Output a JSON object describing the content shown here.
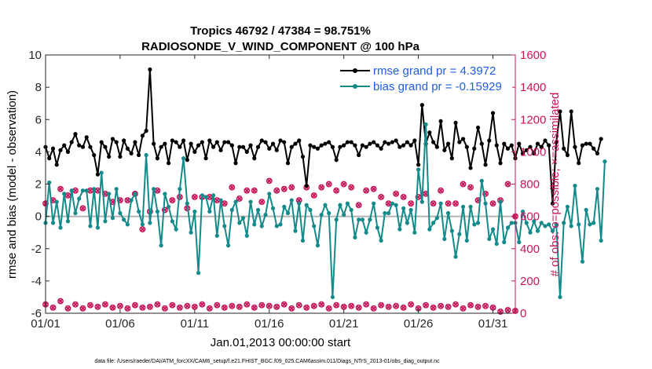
{
  "chart_data": {
    "type": "line",
    "title_line1": "Tropics 46792 / 47384 = 98.751%",
    "title_line2": "RADIOSONDE_V_WIND_COMPONENT @ 100 hPa",
    "xlabel": "Jan.01,2013 00:00:00 start",
    "ylabel_left": "rmse and bias (model - observation)",
    "ylabel_right": "# of obs: o=possible; ×=assimilated",
    "footer": "data file: /Users/raeder/DAI/ATM_forcXX/CAM6_setup/f.e21.FHIST_BGC.f09_025.CAM6assim.011/Diags_NTrS_2013-01/obs_diag_output.nc",
    "xlim": [
      1,
      32.5
    ],
    "ylim_left": [
      -6,
      10
    ],
    "ylim_right": [
      0,
      1600
    ],
    "x_ticks": [
      1,
      6,
      11,
      16,
      21,
      26,
      31
    ],
    "x_tick_labels": [
      "01/01",
      "01/06",
      "01/11",
      "01/16",
      "01/21",
      "01/26",
      "01/31"
    ],
    "yleft_ticks": [
      -6,
      -4,
      -2,
      0,
      2,
      4,
      6,
      8,
      10
    ],
    "yleft_tick_labels": [
      "-6",
      "-4",
      "-2",
      "0",
      "2",
      "4",
      "6",
      "8",
      "10"
    ],
    "yright_ticks": [
      0,
      200,
      400,
      600,
      800,
      1000,
      1200,
      1400,
      1600
    ],
    "yright_tick_labels": [
      "0",
      "200",
      "400",
      "600",
      "800",
      "1000",
      "1200",
      "1400",
      "1600"
    ],
    "legend": {
      "rmse_label": "rmse grand pr = 4.3972",
      "bias_label": "bias grand pr = -0.15929",
      "position": "top-right"
    },
    "colors": {
      "rmse": "#000000",
      "bias": "#148a8a",
      "obs": "#c8155a",
      "legend_text": "#1f5fe0",
      "zero_line": "#b4b4b4"
    },
    "x_start": 1.0,
    "x_step": 0.25,
    "series": [
      {
        "name": "rmse",
        "axis": "left",
        "values": [
          4.3,
          3.6,
          4.2,
          3.2,
          4.1,
          4.4,
          4.0,
          4.6,
          5.1,
          4.4,
          4.3,
          4.9,
          4.3,
          3.8,
          2.6,
          4.6,
          4.3,
          3.7,
          4.8,
          4.6,
          3.7,
          4.7,
          4.2,
          3.9,
          4.6,
          3.8,
          5.0,
          5.3,
          9.1,
          4.5,
          3.6,
          4.3,
          4.5,
          3.3,
          4.7,
          4.6,
          4.3,
          4.7,
          3.5,
          4.5,
          4.0,
          4.4,
          4.6,
          3.6,
          4.7,
          4.3,
          4.6,
          4.1,
          4.6,
          4.6,
          4.4,
          3.3,
          4.3,
          4.3,
          4.0,
          4.4,
          3.6,
          4.3,
          4.7,
          4.6,
          4.2,
          4.5,
          4.1,
          4.7,
          4.6,
          3.3,
          4.3,
          4.5,
          4.7,
          3.7,
          1.9,
          4.4,
          4.3,
          4.2,
          4.4,
          4.5,
          4.6,
          4.3,
          3.5,
          4.3,
          4.4,
          4.6,
          4.6,
          4.4,
          3.8,
          4.4,
          4.3,
          4.5,
          4.6,
          4.4,
          4.2,
          4.6,
          4.5,
          4.6,
          4.7,
          4.3,
          4.4,
          4.6,
          4.4,
          4.7,
          3.2,
          6.9,
          4.5,
          5.2,
          4.6,
          4.3,
          5.9,
          4.1,
          4.5,
          3.6,
          5.8,
          4.6,
          4.8,
          4.3,
          3.0,
          4.2,
          5.5,
          4.5,
          3.2,
          4.7,
          6.4,
          4.4,
          3.3,
          4.5,
          4.2,
          4.4,
          3.6,
          4.5,
          3.9,
          4.1,
          4.3,
          3.9,
          4.5,
          4.3,
          4.7,
          4.4,
          0.8,
          4.6,
          6.5,
          4.2,
          3.8,
          6.5,
          4.3,
          3.3,
          4.4,
          4.5,
          4.5,
          4.2,
          3.9,
          4.8
        ]
      },
      {
        "name": "bias",
        "axis": "left",
        "values": [
          -0.4,
          2.1,
          -0.4,
          0.9,
          -0.7,
          1.4,
          -0.3,
          1.6,
          0.2,
          1.1,
          1.6,
          1.6,
          -0.6,
          1.7,
          -0.7,
          2.7,
          -0.3,
          1.4,
          -0.1,
          1.7,
          0.2,
          -0.2,
          -0.5,
          1.0,
          1.4,
          0.3,
          -0.5,
          3.8,
          -0.4,
          1.7,
          0.3,
          -1.8,
          1.4,
          0.6,
          -0.3,
          -0.8,
          1.7,
          3.6,
          0.8,
          -1.0,
          0.3,
          -3.5,
          1.3,
          1.2,
          0.3,
          1.3,
          -1.2,
          1.0,
          -0.6,
          -1.8,
          0.4,
          0.9,
          -0.4,
          -0.1,
          -1.2,
          0.9,
          -0.5,
          0.4,
          -0.6,
          0.1,
          1.4,
          0.5,
          -0.6,
          -0.5,
          0.6,
          0.2,
          1.0,
          -0.9,
          0.8,
          -1.5,
          0.7,
          0.4,
          -0.6,
          -1.8,
          0.1,
          0.7,
          0.2,
          -5.0,
          -0.2,
          0.7,
          0.1,
          0.8,
          0.4,
          -1.3,
          -0.2,
          -0.2,
          -1.0,
          -0.2,
          0.8,
          -0.7,
          -1.5,
          0.2,
          0.2,
          0.8,
          0.7,
          -0.8,
          0.5,
          -0.4,
          0.4,
          -1.0,
          2.9,
          0.9,
          5.7,
          -0.8,
          -0.4,
          -0.1,
          0.8,
          -1.4,
          0.2,
          -0.9,
          -2.5,
          -1.1,
          0.6,
          -1.5,
          0.6,
          -0.5,
          -0.4,
          2.2,
          0.8,
          -1.4,
          -0.8,
          -1.7,
          0.9,
          -1.6,
          -0.7,
          -0.4,
          -0.4,
          -1.6,
          0.3,
          -0.4,
          -1.0,
          -0.3,
          -0.9,
          -0.4,
          -0.6,
          -0.5,
          -0.9,
          -0.5,
          -5.0,
          -0.4,
          0.6,
          -0.6,
          1.9,
          -0.5,
          -2.8,
          0.4,
          -0.5,
          -0.4,
          1.7,
          -1.5,
          3.4
        ]
      },
      {
        "name": "obs_possible",
        "axis": "right",
        "x_start": 1.0,
        "x_step": 0.5,
        "values": [
          55,
          35,
          75,
          30,
          55,
          30,
          50,
          40,
          55,
          35,
          45,
          30,
          50,
          35,
          40,
          55,
          30,
          50,
          35,
          45,
          40,
          55,
          30,
          50,
          35,
          45,
          40,
          55,
          35,
          50,
          45,
          40,
          55,
          30,
          50,
          35,
          45,
          55,
          30,
          50,
          40,
          45,
          35,
          55,
          30,
          50,
          40,
          45,
          35,
          55,
          30,
          50,
          35,
          45,
          40,
          55,
          30,
          50,
          40,
          45,
          35,
          10,
          20,
          15
        ]
      },
      {
        "name": "obs_assimilated",
        "axis": "right",
        "x_start": 1.0,
        "x_step": 0.5,
        "values": [
          680,
          700,
          770,
          730,
          760,
          650,
          760,
          760,
          740,
          690,
          700,
          700,
          740,
          520,
          630,
          760,
          640,
          700,
          720,
          650,
          720,
          720,
          720,
          700,
          680,
          780,
          710,
          760,
          760,
          690,
          820,
          760,
          770,
          780,
          700,
          780,
          730,
          780,
          800,
          760,
          800,
          780,
          670,
          760,
          770,
          720,
          680,
          740,
          720,
          680,
          720,
          740,
          680,
          760,
          680,
          680,
          800,
          780,
          700,
          740,
          680,
          700,
          800,
          600
        ]
      }
    ]
  }
}
